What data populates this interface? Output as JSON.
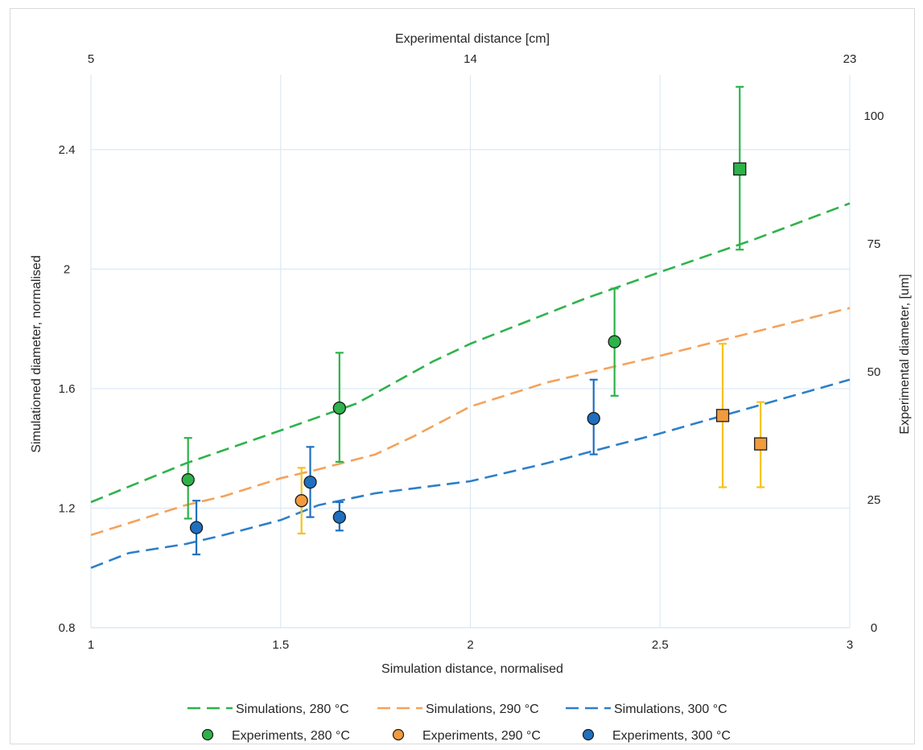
{
  "chart_data": {
    "type": "line",
    "xlabel": "Simulation distance, normalised",
    "ylabel": "Simulationed diameter, normalised",
    "x2label": "Experimental distance [cm]",
    "y2label": "Experimental diameter, [um]",
    "xlim": [
      1,
      3
    ],
    "ylim": [
      0.8,
      2.65
    ],
    "x2lim": [
      5,
      23
    ],
    "y2lim": [
      0,
      108
    ],
    "x_ticks": [
      1,
      1.5,
      2,
      2.5,
      3
    ],
    "x_tick_labels": [
      "1",
      "1.5",
      "2",
      "2.5",
      "3"
    ],
    "y_ticks": [
      0.8,
      1.2,
      1.6,
      2,
      2.4
    ],
    "y_tick_labels": [
      "0.8",
      "1.2",
      "1.6",
      "2",
      "2.4"
    ],
    "x2_ticks": [
      5,
      14,
      23
    ],
    "x2_tick_labels": [
      "5",
      "14",
      "23"
    ],
    "y2_ticks": [
      0,
      25,
      50,
      75,
      100
    ],
    "y2_tick_labels": [
      "0",
      "25",
      "50",
      "75",
      "100"
    ],
    "grid": true,
    "legend_position": "bottom",
    "series": [
      {
        "name": "Simulations, 280 °C",
        "kind": "line",
        "color": "#2db34a",
        "x": [
          1,
          1.25,
          1.5,
          1.7,
          1.8,
          1.9,
          2.0,
          2.1,
          2.3,
          2.5,
          2.75,
          3
        ],
        "y": [
          1.22,
          1.35,
          1.46,
          1.55,
          1.62,
          1.69,
          1.75,
          1.8,
          1.9,
          1.99,
          2.1,
          2.22
        ]
      },
      {
        "name": "Simulations, 290 °C",
        "kind": "line",
        "color": "#f4a25c",
        "x": [
          1,
          1.1,
          1.25,
          1.35,
          1.5,
          1.6,
          1.75,
          1.85,
          2.0,
          2.2,
          2.5,
          2.75,
          3
        ],
        "y": [
          1.11,
          1.15,
          1.21,
          1.24,
          1.3,
          1.33,
          1.38,
          1.44,
          1.54,
          1.62,
          1.71,
          1.79,
          1.87
        ]
      },
      {
        "name": "Simulations, 300 °C",
        "kind": "line",
        "color": "#2e7fc8",
        "x": [
          1,
          1.1,
          1.25,
          1.35,
          1.5,
          1.6,
          1.75,
          2.0,
          2.2,
          2.5,
          2.75,
          3
        ],
        "y": [
          1.0,
          1.05,
          1.08,
          1.11,
          1.16,
          1.21,
          1.25,
          1.29,
          1.35,
          1.45,
          1.54,
          1.63
        ]
      },
      {
        "name": "Experiments, 280 °C",
        "kind": "scatter",
        "color": "#2db34a",
        "points": [
          {
            "x": 1.256,
            "y": 1.295,
            "ylow": 1.165,
            "yhigh": 1.435,
            "marker": "circle"
          },
          {
            "x": 1.655,
            "y": 1.535,
            "ylow": 1.355,
            "yhigh": 1.72,
            "marker": "circle"
          },
          {
            "x": 2.38,
            "y": 1.757,
            "ylow": 1.576,
            "yhigh": 1.935,
            "marker": "circle"
          },
          {
            "x": 2.71,
            "y": 2.335,
            "ylow": 2.065,
            "yhigh": 2.61,
            "marker": "square"
          }
        ]
      },
      {
        "name": "Experiments, 290 °C",
        "kind": "scatter",
        "color": "#f29a3e",
        "errorColor": "#f6c21c",
        "points": [
          {
            "x": 1.555,
            "y": 1.225,
            "ylow": 1.115,
            "yhigh": 1.335,
            "marker": "circle"
          },
          {
            "x": 2.665,
            "y": 1.51,
            "ylow": 1.27,
            "yhigh": 1.75,
            "marker": "square"
          },
          {
            "x": 2.765,
            "y": 1.415,
            "ylow": 1.27,
            "yhigh": 1.555,
            "marker": "square"
          }
        ]
      },
      {
        "name": "Experiments, 300 °C",
        "kind": "scatter",
        "color": "#1f6fbf",
        "points": [
          {
            "x": 1.278,
            "y": 1.135,
            "ylow": 1.045,
            "yhigh": 1.225,
            "marker": "circle"
          },
          {
            "x": 1.578,
            "y": 1.287,
            "ylow": 1.17,
            "yhigh": 1.405,
            "marker": "circle"
          },
          {
            "x": 1.655,
            "y": 1.17,
            "ylow": 1.125,
            "yhigh": 1.22,
            "marker": "circle"
          },
          {
            "x": 2.325,
            "y": 1.5,
            "ylow": 1.38,
            "yhigh": 1.63,
            "marker": "circle"
          }
        ]
      }
    ]
  }
}
